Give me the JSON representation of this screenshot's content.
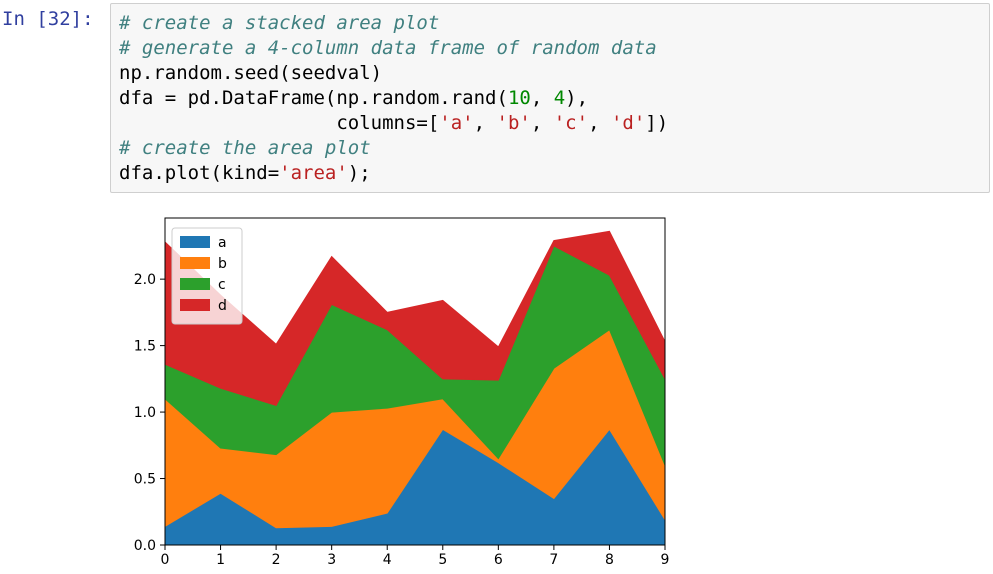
{
  "cell": {
    "prompt": "In [32]:",
    "code_lines": [
      [
        {
          "t": "# create a stacked area plot",
          "c": "comment"
        }
      ],
      [
        {
          "t": "# generate a 4-column data frame of random data",
          "c": "comment"
        }
      ],
      [
        {
          "t": "np.random.seed(seedval)",
          "c": ""
        }
      ],
      [
        {
          "t": "dfa = pd.DataFrame(np.random.rand(",
          "c": ""
        },
        {
          "t": "10",
          "c": "number"
        },
        {
          "t": ", ",
          "c": ""
        },
        {
          "t": "4",
          "c": "number"
        },
        {
          "t": "),",
          "c": ""
        }
      ],
      [
        {
          "t": "                   columns=[",
          "c": ""
        },
        {
          "t": "'a'",
          "c": "string"
        },
        {
          "t": ", ",
          "c": ""
        },
        {
          "t": "'b'",
          "c": "string"
        },
        {
          "t": ", ",
          "c": ""
        },
        {
          "t": "'c'",
          "c": "string"
        },
        {
          "t": ", ",
          "c": ""
        },
        {
          "t": "'d'",
          "c": "string"
        },
        {
          "t": "])",
          "c": ""
        }
      ],
      [
        {
          "t": "# create the area plot",
          "c": "comment"
        }
      ],
      [
        {
          "t": "dfa.plot(kind=",
          "c": ""
        },
        {
          "t": "'area'",
          "c": "string"
        },
        {
          "t": ");",
          "c": ""
        }
      ]
    ]
  },
  "chart_data": {
    "type": "area",
    "stacked": true,
    "x": [
      0,
      1,
      2,
      3,
      4,
      5,
      6,
      7,
      8,
      9
    ],
    "xticks": [
      "0",
      "1",
      "2",
      "3",
      "4",
      "5",
      "6",
      "7",
      "8",
      "9"
    ],
    "yticks": [
      "0.0",
      "0.5",
      "1.0",
      "1.5",
      "2.0"
    ],
    "ytick_values": [
      0,
      0.5,
      1.0,
      1.5,
      2.0
    ],
    "xlim": [
      0,
      9
    ],
    "ylim": [
      0,
      2.46
    ],
    "grid": false,
    "legend_position": "top-left",
    "series": [
      {
        "name": "a",
        "color": "#1f77b4",
        "values": [
          0.14,
          0.39,
          0.13,
          0.14,
          0.24,
          0.87,
          0.62,
          0.35,
          0.87,
          0.19
        ]
      },
      {
        "name": "b",
        "color": "#ff7f0e",
        "values": [
          0.96,
          0.34,
          0.55,
          0.86,
          0.79,
          0.23,
          0.03,
          0.98,
          0.75,
          0.41
        ]
      },
      {
        "name": "c",
        "color": "#2ca02c",
        "values": [
          0.26,
          0.45,
          0.37,
          0.81,
          0.59,
          0.15,
          0.59,
          0.92,
          0.41,
          0.65
        ]
      },
      {
        "name": "d",
        "color": "#d62728",
        "values": [
          0.92,
          0.7,
          0.46,
          0.36,
          0.13,
          0.59,
          0.25,
          0.04,
          0.33,
          0.28
        ]
      }
    ]
  }
}
